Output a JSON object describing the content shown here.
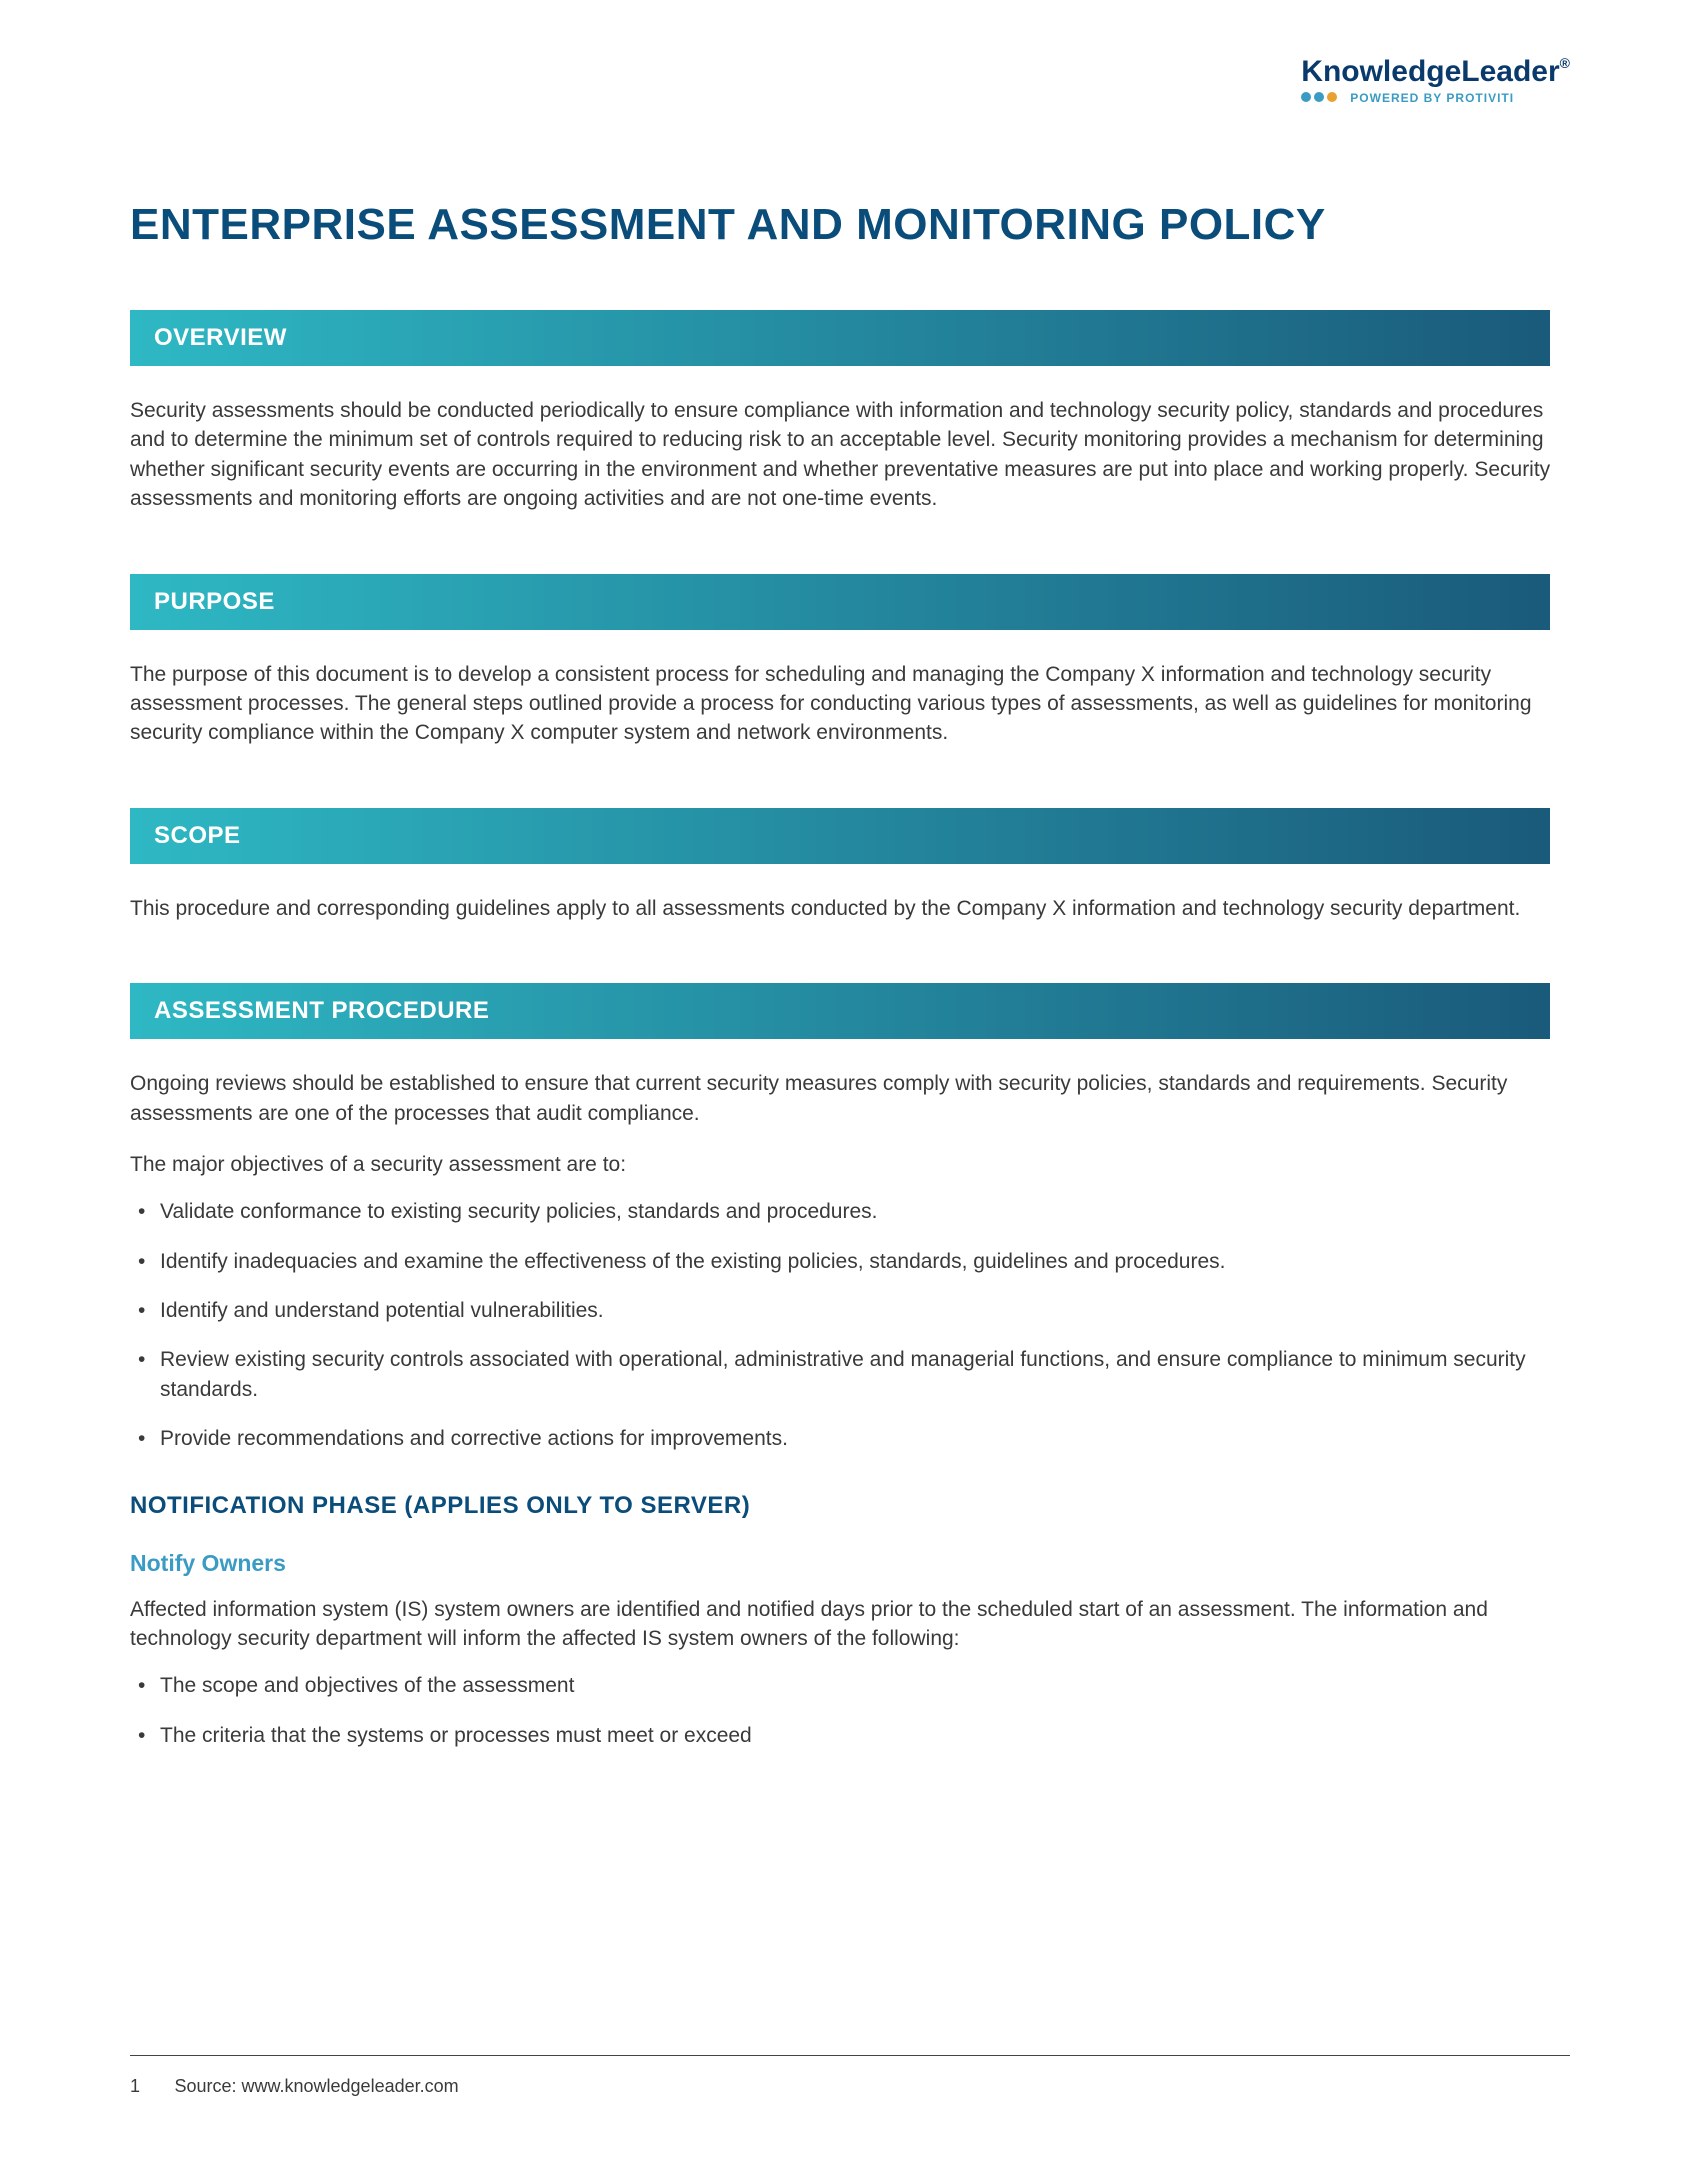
{
  "logo": {
    "main": "KnowledgeLeader",
    "trademark": "®",
    "tagline": "POWERED BY PROTIVITI",
    "dot_colors": [
      "#3a9bc4",
      "#3a9bc4",
      "#e8a030"
    ]
  },
  "title": "ENTERPRISE ASSESSMENT AND MONITORING POLICY",
  "sections": {
    "overview": {
      "heading": "OVERVIEW",
      "body": "Security assessments should be conducted periodically to ensure compliance with information and technology security policy, standards and procedures and to determine the minimum set of controls required to reducing risk to an acceptable level. Security monitoring provides a mechanism for determining whether significant security events are occurring in the environment and whether preventative measures are put into place and working properly. Security assessments and monitoring efforts are ongoing activities and are not one-time events."
    },
    "purpose": {
      "heading": "PURPOSE",
      "body": "The purpose of this document is to develop a consistent process for scheduling and managing the Company X information and technology security assessment processes. The general steps outlined provide a process for conducting various types of assessments, as well as guidelines for monitoring security compliance within the Company X computer system and network environments."
    },
    "scope": {
      "heading": "SCOPE",
      "body": "This procedure and corresponding guidelines apply to all assessments conducted by the Company X information and technology security department."
    },
    "procedure": {
      "heading": "ASSESSMENT PROCEDURE",
      "intro1": "Ongoing reviews should be established to ensure that current security measures comply with security policies, standards and requirements. Security assessments are one of the processes that audit compliance.",
      "intro2": "The major objectives of a security assessment are to:",
      "bullets": [
        "Validate conformance to existing security policies, standards and procedures.",
        "Identify inadequacies and examine the effectiveness of the existing policies, standards, guidelines and procedures.",
        "Identify and understand potential vulnerabilities.",
        "Review existing security controls associated with operational, administrative and managerial functions, and ensure compliance to minimum security standards.",
        "Provide recommendations and corrective actions for improvements."
      ],
      "notification": {
        "heading1": "NOTIFICATION PHASE (APPLIES ONLY TO SERVER)",
        "heading2": "Notify Owners",
        "body": "Affected information system (IS) system owners are identified and notified days prior to the scheduled start of an assessment. The information and technology security department will inform the affected IS system owners of the following:",
        "bullets": [
          "The scope and objectives of the assessment",
          "The criteria that the systems or processes must meet or exceed"
        ]
      }
    }
  },
  "footer": {
    "page": "1",
    "source": "Source: www.knowledgeleader.com"
  },
  "colors": {
    "title": "#0a4d7a",
    "heading_gradient_start": "#2eb8c4",
    "heading_gradient_end": "#1a5a7a",
    "body_text": "#3a3a3a",
    "sub_heading": "#3a9bc4"
  }
}
